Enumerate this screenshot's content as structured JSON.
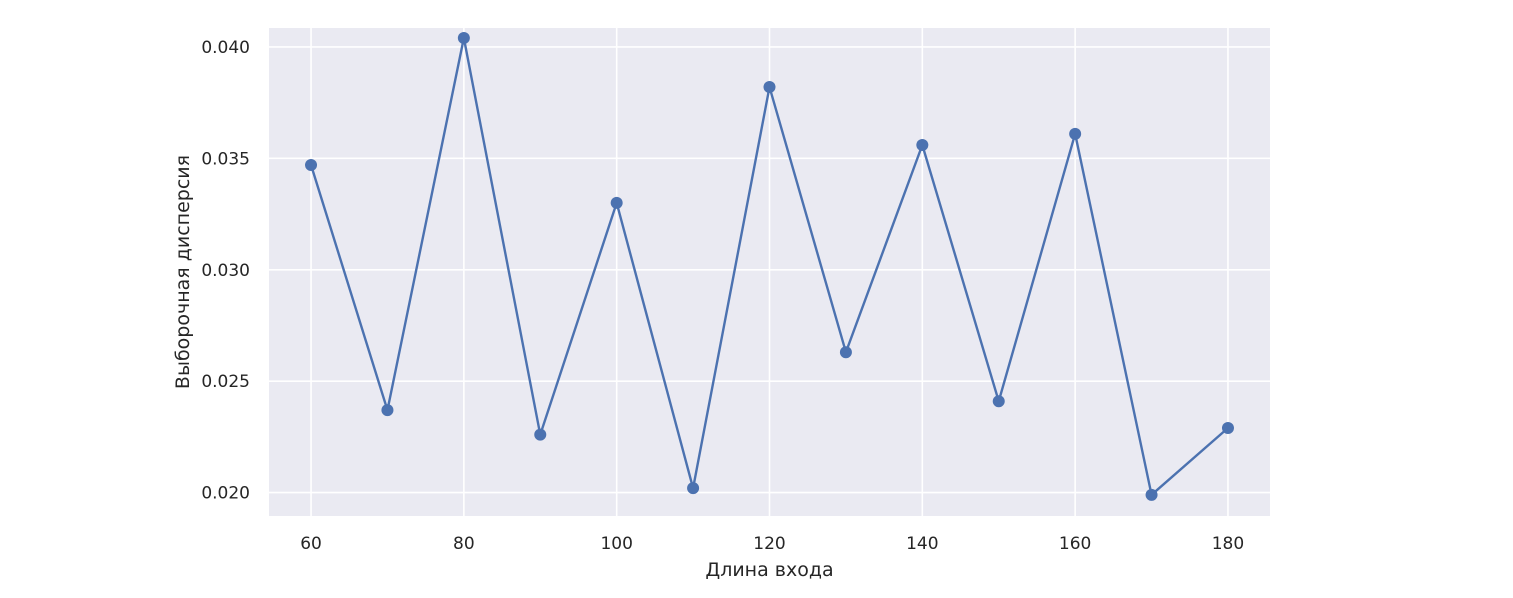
{
  "chart_data": {
    "type": "line",
    "title": "",
    "xlabel": "Длина входа",
    "ylabel": "Выборочная дисперсия",
    "x": [
      60,
      70,
      80,
      90,
      100,
      110,
      120,
      130,
      140,
      150,
      160,
      170,
      180
    ],
    "series": [
      {
        "values": [
          0.0347,
          0.0237,
          0.0404,
          0.0226,
          0.033,
          0.0202,
          0.0382,
          0.0263,
          0.0356,
          0.0241,
          0.0361,
          0.0199,
          0.0229
        ],
        "color": "#4c72b0",
        "marker": "circle"
      }
    ],
    "xlim": [
      54.5,
      185.5
    ],
    "ylim": [
      0.01895,
      0.04085
    ],
    "xticks": [
      60,
      80,
      100,
      120,
      140,
      160,
      180
    ],
    "xtick_labels": [
      "60",
      "80",
      "100",
      "120",
      "140",
      "160",
      "180"
    ],
    "yticks": [
      0.02,
      0.025,
      0.03,
      0.035,
      0.04
    ],
    "ytick_labels": [
      "0.020",
      "0.025",
      "0.030",
      "0.035",
      "0.040"
    ],
    "grid": true,
    "background": "#eaeaf2",
    "grid_color": "#ffffff"
  }
}
